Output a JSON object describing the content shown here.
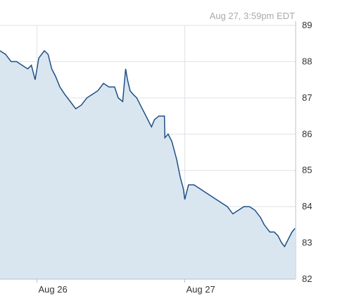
{
  "header": {
    "timestamp": "Aug 27, 3:59pm EDT"
  },
  "colors": {
    "line": "#1f4f86",
    "area_fill": "#d9e6f0",
    "grid": "#dde2e8",
    "axis": "#b8c2cc"
  },
  "chart_data": {
    "type": "area",
    "title": "",
    "xlabel": "",
    "ylabel": "",
    "ylim": [
      82,
      89
    ],
    "y_ticks": [
      "82",
      "83",
      "84",
      "85",
      "86",
      "87",
      "88",
      "89"
    ],
    "x_ticks": [
      "Aug 26",
      "Aug 27"
    ],
    "grid": true,
    "y_axis_side": "right",
    "series": [
      {
        "points": [
          [
            0.0,
            88.3
          ],
          [
            0.15,
            88.2
          ],
          [
            0.3,
            88.0
          ],
          [
            0.45,
            88.0
          ],
          [
            0.6,
            87.9
          ],
          [
            0.75,
            87.8
          ],
          [
            0.85,
            87.9
          ],
          [
            0.95,
            87.5
          ],
          [
            1.05,
            88.1
          ],
          [
            1.2,
            88.3
          ],
          [
            1.3,
            88.2
          ],
          [
            1.4,
            87.8
          ],
          [
            1.5,
            87.6
          ],
          [
            1.62,
            87.3
          ],
          [
            1.75,
            87.1
          ],
          [
            1.9,
            86.9
          ],
          [
            2.05,
            86.7
          ],
          [
            2.2,
            86.8
          ],
          [
            2.35,
            87.0
          ],
          [
            2.5,
            87.1
          ],
          [
            2.65,
            87.2
          ],
          [
            2.8,
            87.4
          ],
          [
            2.95,
            87.3
          ],
          [
            3.1,
            87.3
          ],
          [
            3.2,
            87.0
          ],
          [
            3.32,
            86.9
          ],
          [
            3.4,
            87.8
          ],
          [
            3.45,
            87.5
          ],
          [
            3.52,
            87.2
          ],
          [
            3.6,
            87.1
          ],
          [
            3.7,
            87.0
          ],
          [
            3.85,
            86.7
          ],
          [
            4.0,
            86.4
          ],
          [
            4.1,
            86.2
          ],
          [
            4.18,
            86.4
          ],
          [
            4.3,
            86.5
          ],
          [
            4.45,
            86.5
          ],
          [
            4.46,
            85.9
          ],
          [
            4.55,
            86.0
          ],
          [
            4.65,
            85.8
          ],
          [
            4.78,
            85.3
          ],
          [
            4.88,
            84.8
          ],
          [
            4.96,
            84.5
          ],
          [
            5.0,
            84.2
          ],
          [
            5.1,
            84.6
          ],
          [
            5.25,
            84.6
          ],
          [
            5.4,
            84.5
          ],
          [
            5.55,
            84.4
          ],
          [
            5.7,
            84.3
          ],
          [
            5.85,
            84.2
          ],
          [
            6.0,
            84.1
          ],
          [
            6.15,
            84.0
          ],
          [
            6.3,
            83.8
          ],
          [
            6.45,
            83.9
          ],
          [
            6.6,
            84.0
          ],
          [
            6.75,
            84.0
          ],
          [
            6.9,
            83.9
          ],
          [
            7.05,
            83.7
          ],
          [
            7.15,
            83.5
          ],
          [
            7.3,
            83.3
          ],
          [
            7.42,
            83.3
          ],
          [
            7.52,
            83.2
          ],
          [
            7.62,
            83.0
          ],
          [
            7.7,
            82.9
          ],
          [
            7.8,
            83.1
          ],
          [
            7.9,
            83.3
          ],
          [
            7.98,
            83.4
          ]
        ]
      }
    ]
  }
}
